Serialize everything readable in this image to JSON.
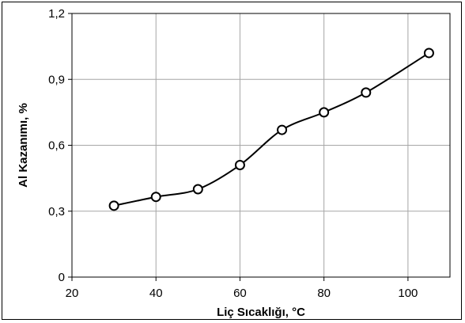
{
  "chart_data": {
    "type": "line",
    "title": "",
    "xlabel": "Liç Sıcaklığı,  °C",
    "ylabel": "Al  Kazanımı,  %",
    "xlim": [
      20,
      110
    ],
    "ylim": [
      0,
      1.2
    ],
    "xticks": [
      20,
      40,
      60,
      80,
      100
    ],
    "xtick_labels": [
      "20",
      "40",
      "60",
      "80",
      "100"
    ],
    "yticks": [
      0,
      0.3,
      0.6,
      0.9,
      1.2
    ],
    "ytick_labels": [
      "0",
      "0,3",
      "0,6",
      "0,9",
      "1,2"
    ],
    "grid": true,
    "legend": "none",
    "series": [
      {
        "x": [
          30,
          40,
          50,
          60,
          70,
          80,
          90,
          105
        ],
        "values": [
          0.325,
          0.365,
          0.4,
          0.51,
          0.67,
          0.75,
          0.84,
          1.02
        ]
      }
    ],
    "colors": {
      "line": "#000000",
      "marker_fill": "#ffffff",
      "grid": "#a6a6a6"
    }
  }
}
